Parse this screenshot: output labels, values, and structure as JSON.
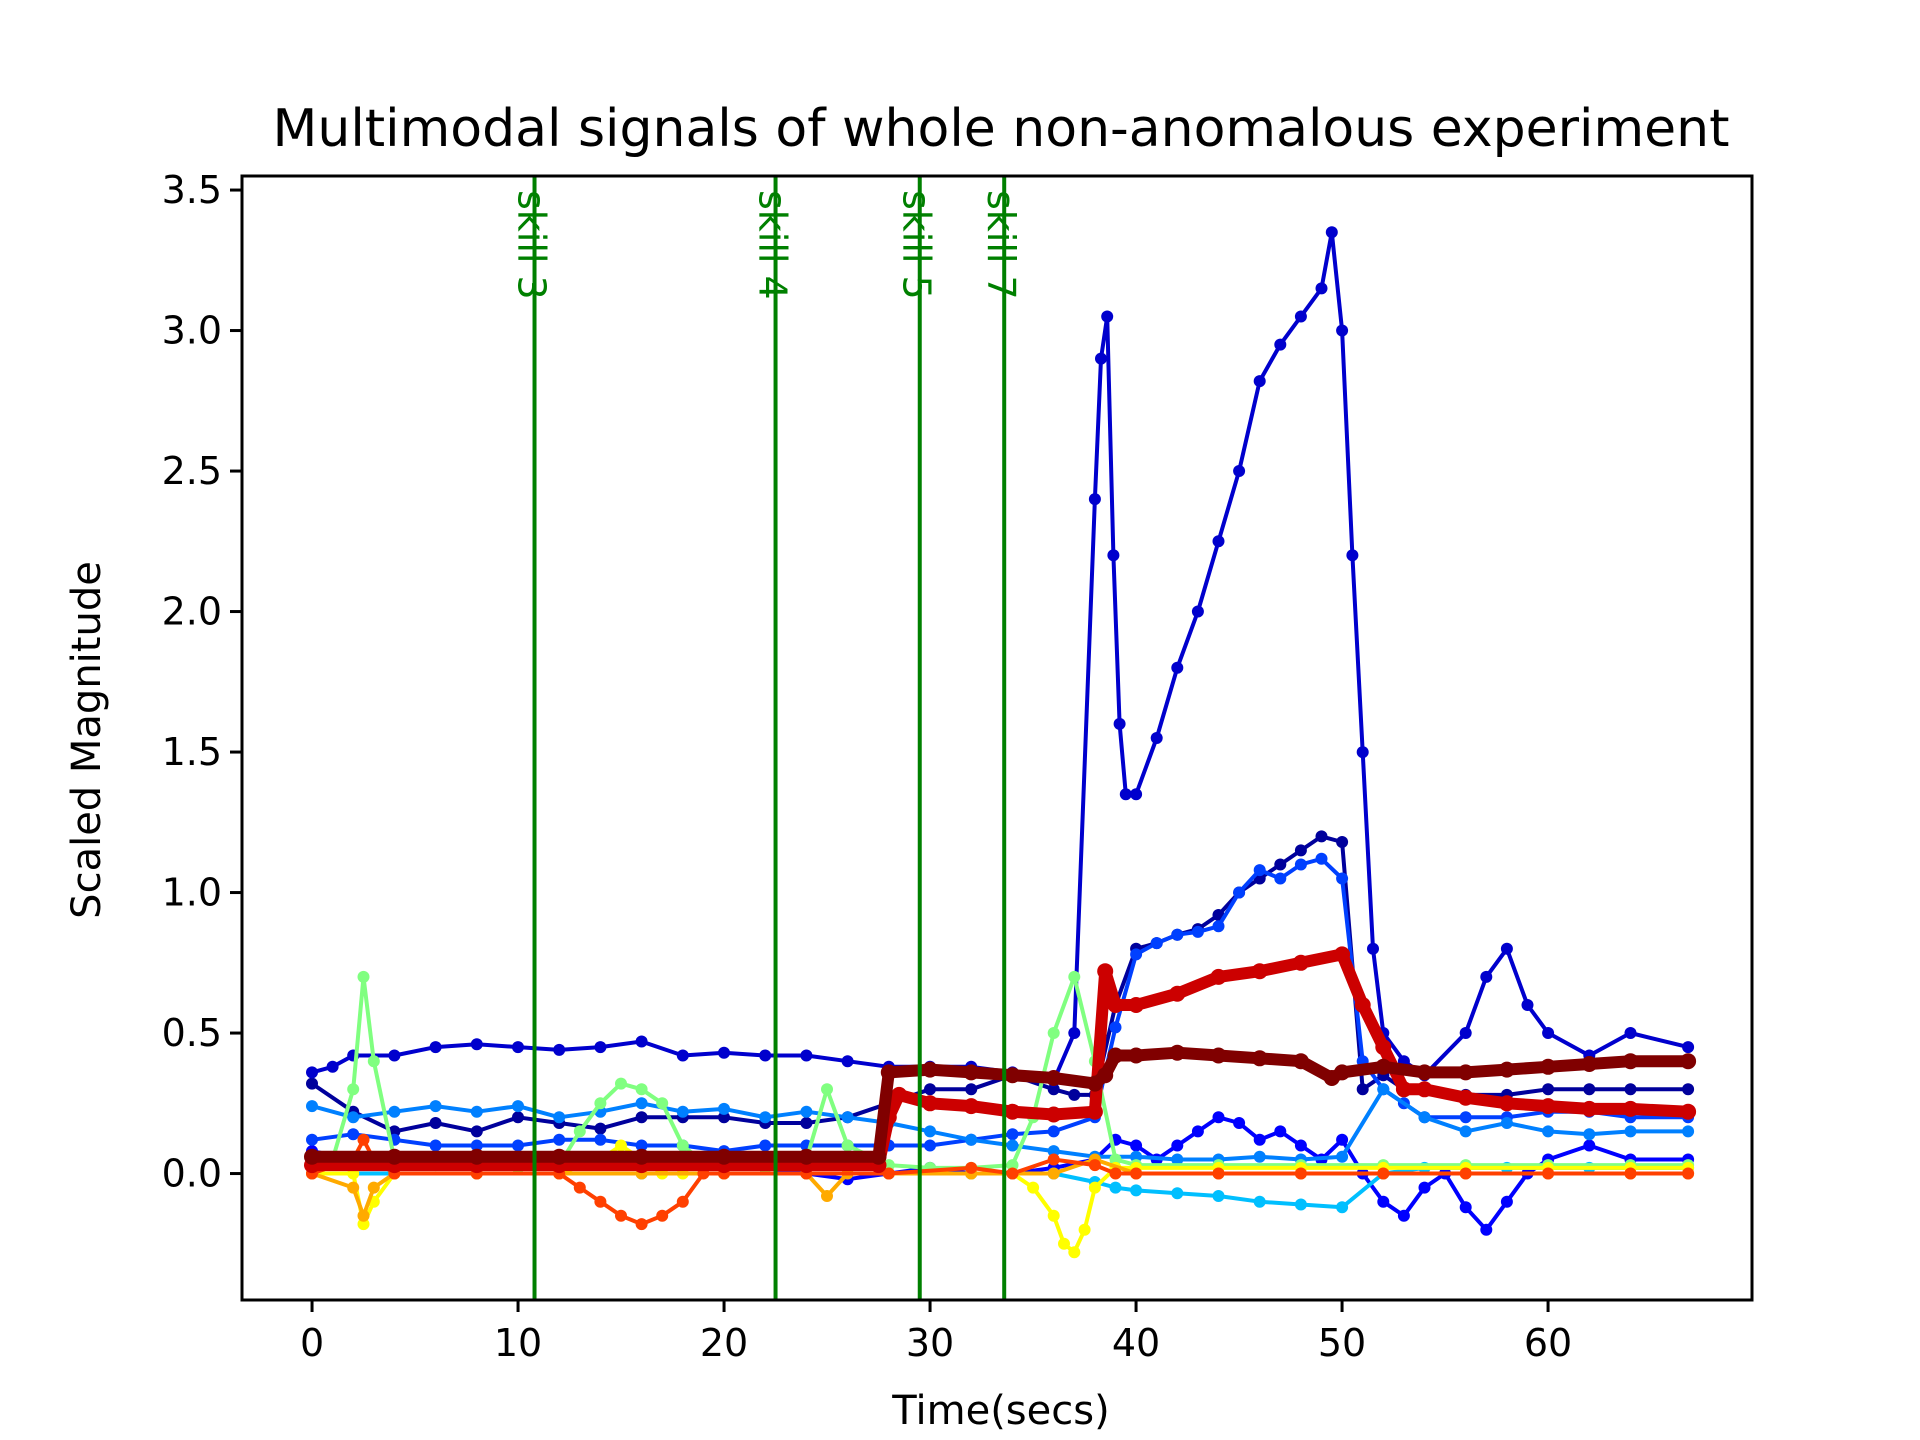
{
  "chart_data": {
    "type": "line",
    "title": "Multimodal signals of whole non-anomalous experiment",
    "xlabel": "Time(secs)",
    "ylabel": "Scaled Magnitude",
    "xlim": [
      -3.4,
      69.9
    ],
    "ylim": [
      -0.45,
      3.55
    ],
    "x_ticks": [
      0,
      10,
      20,
      30,
      40,
      50,
      60
    ],
    "y_ticks": [
      0.0,
      0.5,
      1.0,
      1.5,
      2.0,
      2.5,
      3.0,
      3.5
    ],
    "x_tick_labels": [
      "0",
      "10",
      "20",
      "30",
      "40",
      "50",
      "60"
    ],
    "y_tick_labels": [
      "0.0",
      "0.5",
      "1.0",
      "1.5",
      "2.0",
      "2.5",
      "3.0",
      "3.5"
    ],
    "grid": false,
    "legend": "none",
    "markers": true,
    "skill_markers": [
      {
        "x": 10.8,
        "label": "skill 3"
      },
      {
        "x": 22.5,
        "label": "skill 4"
      },
      {
        "x": 29.5,
        "label": "skill 5"
      },
      {
        "x": 33.6,
        "label": "skill 7"
      }
    ],
    "skill_color": "#008000",
    "series": [
      {
        "color": "#00009c",
        "x": [
          0,
          2,
          4,
          6,
          8,
          10,
          12,
          14,
          16,
          18,
          20,
          22,
          24,
          26,
          28,
          30,
          32,
          34,
          36,
          37,
          38,
          39,
          40,
          41,
          42,
          43,
          44,
          45,
          46,
          47,
          48,
          49,
          50,
          51,
          52,
          53,
          54,
          56,
          58,
          60,
          62,
          64,
          66.8
        ],
        "y": [
          0.32,
          0.22,
          0.15,
          0.18,
          0.15,
          0.2,
          0.18,
          0.16,
          0.2,
          0.2,
          0.2,
          0.18,
          0.18,
          0.2,
          0.25,
          0.3,
          0.3,
          0.35,
          0.3,
          0.28,
          0.28,
          0.6,
          0.8,
          0.82,
          0.85,
          0.87,
          0.92,
          1.0,
          1.05,
          1.1,
          1.15,
          1.2,
          1.18,
          0.3,
          0.35,
          0.3,
          0.3,
          0.28,
          0.28,
          0.3,
          0.3,
          0.3,
          0.3
        ]
      },
      {
        "color": "#0000cd",
        "x": [
          0,
          1,
          2,
          4,
          6,
          8,
          10,
          12,
          14,
          16,
          18,
          20,
          22,
          24,
          26,
          28,
          30,
          32,
          34,
          36,
          37,
          38,
          38.3,
          38.6,
          38.9,
          39.2,
          39.5,
          40,
          41,
          42,
          43,
          44,
          45,
          46,
          47,
          48,
          49,
          49.5,
          50,
          50.5,
          51,
          51.5,
          52,
          53,
          54,
          56,
          57,
          58,
          59,
          60,
          62,
          64,
          66.8
        ],
        "y": [
          0.36,
          0.38,
          0.42,
          0.42,
          0.45,
          0.46,
          0.45,
          0.44,
          0.45,
          0.47,
          0.42,
          0.43,
          0.42,
          0.42,
          0.4,
          0.38,
          0.38,
          0.38,
          0.36,
          0.33,
          0.5,
          2.4,
          2.9,
          3.05,
          2.2,
          1.6,
          1.35,
          1.35,
          1.55,
          1.8,
          2.0,
          2.25,
          2.5,
          2.82,
          2.95,
          3.05,
          3.15,
          3.35,
          3.0,
          2.2,
          1.5,
          0.8,
          0.5,
          0.4,
          0.35,
          0.5,
          0.7,
          0.8,
          0.6,
          0.5,
          0.42,
          0.5,
          0.45
        ]
      },
      {
        "color": "#0000ff",
        "x": [
          0,
          2,
          4,
          6,
          8,
          10,
          12,
          14,
          16,
          18,
          20,
          22,
          24,
          26,
          28,
          30,
          32,
          34,
          36,
          38,
          39,
          40,
          41,
          42,
          43,
          44,
          45,
          46,
          47,
          48,
          49,
          50,
          51,
          52,
          53,
          54,
          55,
          56,
          57,
          58,
          59,
          60,
          62,
          64,
          66.8
        ],
        "y": [
          0.08,
          0.05,
          0.06,
          0.04,
          0.05,
          0.04,
          0.03,
          0.05,
          0.04,
          0.03,
          0.04,
          0.02,
          0.0,
          -0.02,
          0.0,
          0.02,
          0.0,
          0.0,
          0.02,
          0.05,
          0.12,
          0.1,
          0.05,
          0.1,
          0.15,
          0.2,
          0.18,
          0.12,
          0.15,
          0.1,
          0.05,
          0.12,
          0.0,
          -0.1,
          -0.15,
          -0.05,
          0.0,
          -0.12,
          -0.2,
          -0.1,
          0.0,
          0.05,
          0.1,
          0.05,
          0.05
        ]
      },
      {
        "color": "#0040ff",
        "x": [
          0,
          2,
          4,
          6,
          8,
          10,
          12,
          14,
          16,
          18,
          20,
          22,
          24,
          26,
          28,
          30,
          32,
          34,
          36,
          38,
          39,
          40,
          41,
          42,
          43,
          44,
          45,
          46,
          47,
          48,
          49,
          50,
          51,
          52,
          53,
          54,
          56,
          58,
          60,
          62,
          64,
          66.8
        ],
        "y": [
          0.12,
          0.14,
          0.12,
          0.1,
          0.1,
          0.1,
          0.12,
          0.12,
          0.1,
          0.1,
          0.08,
          0.1,
          0.1,
          0.1,
          0.1,
          0.1,
          0.12,
          0.14,
          0.15,
          0.2,
          0.52,
          0.78,
          0.82,
          0.85,
          0.86,
          0.88,
          1.0,
          1.08,
          1.05,
          1.1,
          1.12,
          1.05,
          0.4,
          0.3,
          0.25,
          0.2,
          0.2,
          0.2,
          0.22,
          0.22,
          0.2,
          0.2
        ]
      },
      {
        "color": "#0080ff",
        "x": [
          0,
          2,
          4,
          6,
          8,
          10,
          12,
          14,
          16,
          18,
          20,
          22,
          24,
          26,
          28,
          30,
          32,
          34,
          36,
          38,
          40,
          42,
          44,
          46,
          48,
          50,
          52,
          54,
          56,
          58,
          60,
          62,
          64,
          66.8
        ],
        "y": [
          0.24,
          0.2,
          0.22,
          0.24,
          0.22,
          0.24,
          0.2,
          0.22,
          0.25,
          0.22,
          0.23,
          0.2,
          0.22,
          0.2,
          0.18,
          0.15,
          0.12,
          0.1,
          0.08,
          0.06,
          0.06,
          0.05,
          0.05,
          0.06,
          0.05,
          0.06,
          0.3,
          0.2,
          0.15,
          0.18,
          0.15,
          0.14,
          0.15,
          0.15
        ]
      },
      {
        "color": "#00bfff",
        "x": [
          0,
          4,
          8,
          12,
          16,
          20,
          24,
          28,
          32,
          36,
          38,
          39,
          40,
          42,
          44,
          46,
          48,
          50,
          52,
          54,
          58,
          62,
          66.8
        ],
        "y": [
          0.0,
          0.0,
          0.0,
          0.0,
          0.0,
          0.0,
          0.0,
          0.0,
          0.0,
          0.0,
          -0.03,
          -0.05,
          -0.06,
          -0.07,
          -0.08,
          -0.1,
          -0.11,
          -0.12,
          0.0,
          0.02,
          0.02,
          0.02,
          0.02
        ]
      },
      {
        "color": "#80ff80",
        "x": [
          0,
          1,
          2,
          2.5,
          3,
          4,
          6,
          8,
          10,
          12,
          13,
          14,
          15,
          16,
          17,
          18,
          19,
          20,
          22,
          24,
          25,
          26,
          28,
          30,
          32,
          34,
          35,
          36,
          37,
          38,
          39,
          40,
          44,
          48,
          52,
          56,
          60,
          64,
          66.8
        ],
        "y": [
          0.02,
          0.05,
          0.3,
          0.7,
          0.4,
          0.05,
          0.03,
          0.02,
          0.02,
          0.03,
          0.15,
          0.25,
          0.32,
          0.3,
          0.25,
          0.1,
          0.04,
          0.02,
          0.02,
          0.05,
          0.3,
          0.1,
          0.03,
          0.02,
          0.02,
          0.03,
          0.2,
          0.5,
          0.7,
          0.4,
          0.05,
          0.03,
          0.03,
          0.03,
          0.03,
          0.03,
          0.03,
          0.03,
          0.03
        ]
      },
      {
        "color": "#ffff00",
        "x": [
          0,
          2,
          2.5,
          3,
          4,
          8,
          12,
          14,
          15,
          16,
          17,
          18,
          20,
          24,
          28,
          32,
          34,
          35,
          36,
          36.5,
          37,
          37.5,
          38,
          39,
          40,
          44,
          48,
          52,
          56,
          60,
          64,
          66.8
        ],
        "y": [
          0.0,
          0.0,
          -0.18,
          -0.1,
          0.0,
          0.0,
          0.0,
          0.05,
          0.1,
          0.05,
          0.0,
          0.0,
          0.0,
          0.0,
          0.0,
          0.0,
          0.0,
          -0.05,
          -0.15,
          -0.25,
          -0.28,
          -0.2,
          -0.05,
          0.02,
          0.02,
          0.02,
          0.02,
          0.02,
          0.02,
          0.02,
          0.02,
          0.02
        ]
      },
      {
        "color": "#ffaa00",
        "x": [
          0,
          2,
          2.5,
          3,
          4,
          8,
          12,
          16,
          20,
          24,
          25,
          26,
          28,
          32,
          36,
          38,
          40,
          44,
          48,
          52,
          56,
          60,
          64,
          66.8
        ],
        "y": [
          0.0,
          -0.05,
          -0.15,
          -0.05,
          0.0,
          0.0,
          0.0,
          0.0,
          0.0,
          0.0,
          -0.08,
          0.0,
          0.0,
          0.0,
          0.0,
          0.05,
          0.0,
          0.0,
          0.0,
          0.0,
          0.0,
          0.0,
          0.0,
          0.0
        ]
      },
      {
        "color": "#ff4000",
        "x": [
          0,
          2,
          2.5,
          3,
          4,
          8,
          12,
          13,
          14,
          15,
          16,
          17,
          18,
          19,
          20,
          24,
          28,
          32,
          34,
          36,
          38,
          39,
          40,
          44,
          48,
          52,
          56,
          60,
          64,
          66.8
        ],
        "y": [
          0.0,
          0.05,
          0.12,
          0.05,
          0.0,
          0.0,
          0.0,
          -0.05,
          -0.1,
          -0.15,
          -0.18,
          -0.15,
          -0.1,
          0.0,
          0.0,
          0.0,
          0.0,
          0.02,
          0.0,
          0.05,
          0.03,
          0.0,
          0.0,
          0.0,
          0.0,
          0.0,
          0.0,
          0.0,
          0.0,
          0.0
        ]
      },
      {
        "color": "#cc0000",
        "x": [
          0,
          4,
          8,
          12,
          16,
          20,
          24,
          27.5,
          28,
          28.5,
          30,
          32,
          34,
          36,
          38,
          38.5,
          39,
          40,
          42,
          44,
          46,
          48,
          50,
          51,
          52,
          53,
          54,
          56,
          58,
          60,
          62,
          64,
          66.8
        ],
        "y": [
          0.03,
          0.03,
          0.03,
          0.03,
          0.03,
          0.03,
          0.03,
          0.03,
          0.2,
          0.28,
          0.25,
          0.24,
          0.22,
          0.21,
          0.22,
          0.72,
          0.6,
          0.6,
          0.64,
          0.7,
          0.72,
          0.75,
          0.78,
          0.6,
          0.45,
          0.3,
          0.3,
          0.27,
          0.25,
          0.24,
          0.23,
          0.23,
          0.22
        ]
      },
      {
        "color": "#800000",
        "x": [
          0,
          4,
          8,
          12,
          16,
          20,
          24,
          27.5,
          28,
          30,
          32,
          34,
          36,
          38,
          38.5,
          39,
          40,
          42,
          44,
          46,
          48,
          49.5,
          50,
          52,
          54,
          56,
          58,
          60,
          62,
          64,
          66.8
        ],
        "y": [
          0.06,
          0.06,
          0.06,
          0.06,
          0.06,
          0.06,
          0.06,
          0.06,
          0.36,
          0.37,
          0.36,
          0.35,
          0.34,
          0.32,
          0.35,
          0.42,
          0.42,
          0.43,
          0.42,
          0.41,
          0.4,
          0.34,
          0.36,
          0.38,
          0.36,
          0.36,
          0.37,
          0.38,
          0.39,
          0.4,
          0.4
        ]
      }
    ]
  }
}
